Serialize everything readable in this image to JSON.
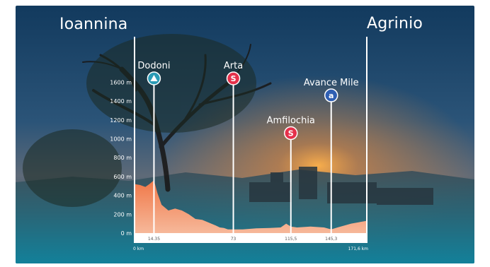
{
  "route": {
    "start_city": "Ioannina",
    "end_city": "Agrinio"
  },
  "colors": {
    "profile_fill": "#f07848",
    "profile_fill_light": "#f4a27a",
    "sprint_badge": "#e5314b",
    "climb_badge": "#2a9bb5",
    "hotspot_badge": "#2f5fb3",
    "vertical_line": "#ffffff"
  },
  "chart_data": {
    "type": "area",
    "title": "",
    "xlabel": "",
    "ylabel": "",
    "x_unit": "km",
    "y_unit": "m",
    "xlim": [
      0,
      171.6
    ],
    "ylim": [
      0,
      1700
    ],
    "y_ticks": [
      0,
      200,
      400,
      600,
      800,
      1000,
      1200,
      1400,
      1600
    ],
    "y_tick_labels": [
      "0 m",
      "200 m",
      "400 m",
      "600 m",
      "800 m",
      "1000 m",
      "1200 m",
      "1400 m",
      "1600 m"
    ],
    "x_start_label": "0 km",
    "x_end_label": "171,6 km",
    "profile": {
      "x": [
        0,
        4,
        8,
        11,
        14.35,
        17,
        20,
        25,
        30,
        35,
        40,
        45,
        50,
        55,
        60,
        63,
        66,
        69,
        73,
        80,
        90,
        100,
        108,
        112,
        115.5,
        120,
        130,
        140,
        145.3,
        150,
        160,
        171.6
      ],
      "y": [
        520,
        510,
        490,
        520,
        560,
        420,
        300,
        240,
        260,
        240,
        200,
        150,
        140,
        110,
        80,
        60,
        55,
        40,
        40,
        40,
        50,
        55,
        60,
        100,
        70,
        60,
        70,
        60,
        40,
        60,
        100,
        130
      ]
    },
    "points": [
      {
        "name": "Dodoni",
        "km": 14.35,
        "km_label": "14.35",
        "type": "climb",
        "icon": "mountain-icon",
        "marker_elevation": 1580
      },
      {
        "name": "Arta",
        "km": 73,
        "km_label": "73",
        "type": "sprint",
        "badge": "S",
        "marker_elevation": 1580
      },
      {
        "name": "Amfilochia",
        "km": 115.5,
        "km_label": "115,5",
        "type": "sprint",
        "badge": "S",
        "marker_elevation": 1000
      },
      {
        "name": "Avance Mile",
        "km": 145.3,
        "km_label": "145,3",
        "type": "hotspot",
        "badge": "a",
        "marker_elevation": 1400
      }
    ]
  }
}
